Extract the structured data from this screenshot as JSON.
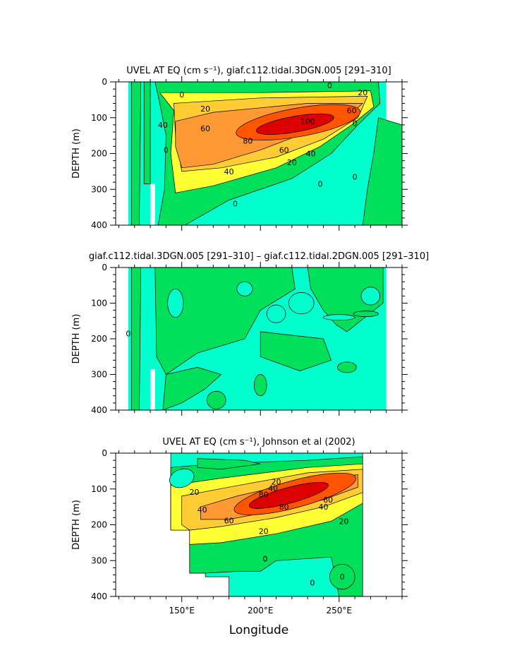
{
  "figure": {
    "xlabel": "Longitude"
  },
  "chart_data": [
    {
      "type": "heatmap",
      "title": "UVEL AT EQ (cm s⁻¹), giaf.c112.tidal.3DGN.005 [291–310]",
      "xlabel": "",
      "ylabel": "DEPTH (m)",
      "xlim": [
        108,
        290
      ],
      "ylim": [
        400,
        0
      ],
      "y_ticks": [
        "0",
        "100",
        "200",
        "300",
        "400"
      ],
      "x_ticks": [],
      "contour_labels": [
        "0",
        "0",
        "0",
        "20",
        "20",
        "20",
        "40",
        "40",
        "40",
        "60",
        "60",
        "60",
        "80",
        "100",
        "0",
        "0",
        "0",
        "0"
      ],
      "colors": {
        "neg": "#00ffcc",
        "c0": "#00e05a",
        "c20": "#ffff33",
        "c40": "#ffcc33",
        "c60": "#ff9933",
        "c80": "#ff5500",
        "c100": "#dd0000"
      }
    },
    {
      "type": "heatmap",
      "title": "giaf.c112.tidal.3DGN.005 [291–310] – giaf.c112.tidal.2DGN.005 [291–310]",
      "xlabel": "",
      "ylabel": "DEPTH (m)",
      "xlim": [
        108,
        290
      ],
      "ylim": [
        400,
        0
      ],
      "y_ticks": [
        "0",
        "100",
        "200",
        "300",
        "400"
      ],
      "x_ticks": [],
      "contour_labels": [
        "0"
      ],
      "colors": {
        "neg": "#00ffcc",
        "pos": "#00e05a"
      }
    },
    {
      "type": "heatmap",
      "title": "UVEL AT EQ (cm s⁻¹), Johnson et al (2002)",
      "xlabel": "Longitude",
      "ylabel": "DEPTH (m)",
      "xlim": [
        108,
        290
      ],
      "ylim": [
        400,
        0
      ],
      "y_ticks": [
        "0",
        "100",
        "200",
        "300",
        "400"
      ],
      "x_ticks": [
        "150°E",
        "200°E",
        "250°E"
      ],
      "x_tick_values": [
        150,
        200,
        250
      ],
      "contour_labels": [
        "20",
        "20",
        "40",
        "40",
        "40",
        "60",
        "60",
        "80",
        "80",
        "20",
        "20",
        "0",
        "0",
        "0"
      ],
      "colors": {
        "neg": "#00ffcc",
        "c0": "#00e05a",
        "c20": "#ffff33",
        "c40": "#ffcc33",
        "c60": "#ff9933",
        "c80": "#ff5500",
        "c100": "#dd0000"
      }
    }
  ]
}
